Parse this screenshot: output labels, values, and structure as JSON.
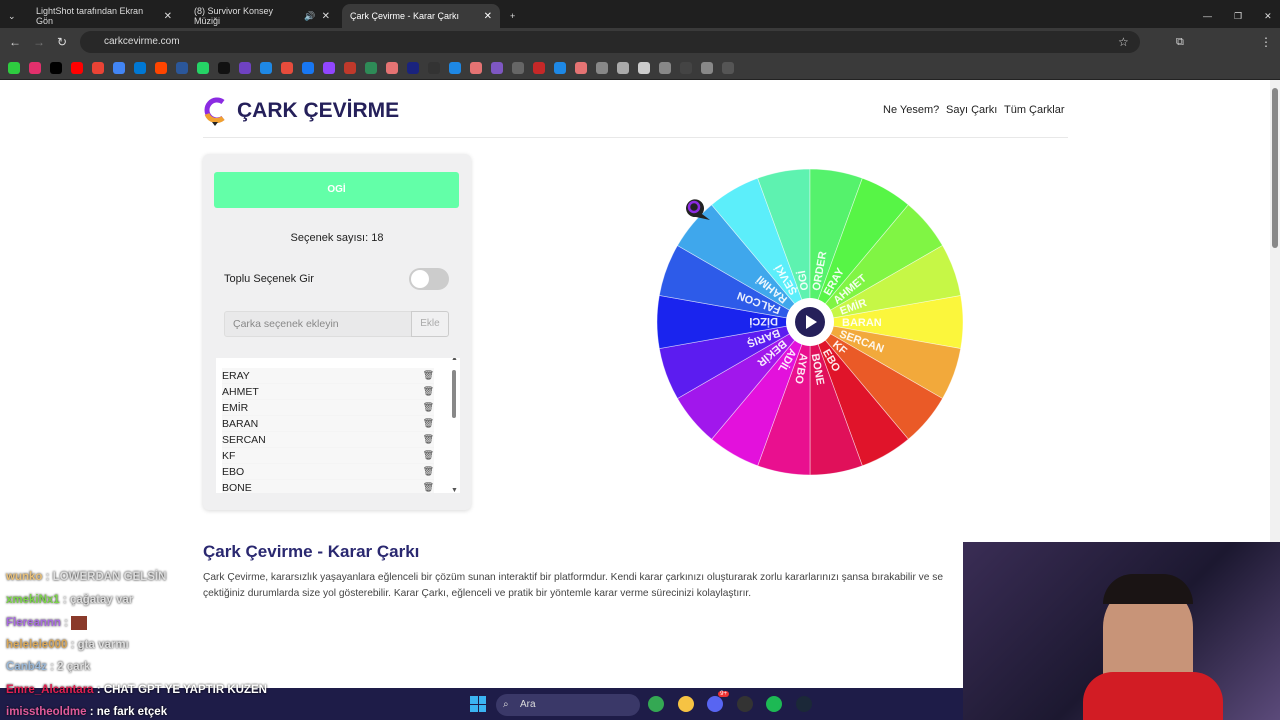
{
  "browser": {
    "tabs": [
      {
        "title": "LightShot tarafından Ekran Gön",
        "active": false
      },
      {
        "title": "(8) Survivor Konsey Müziği",
        "active": false
      },
      {
        "title": "Çark Çevirme - Karar Çarkı",
        "active": true
      }
    ],
    "url": "carkcevirme.com",
    "bookmarks": [
      "#2ecc40",
      "#e1306c",
      "#000000",
      "#ff0000",
      "#ea4335",
      "#4285f4",
      "#0078d4",
      "#ff4500",
      "#2b579a",
      "#25d366",
      "#111111",
      "#6f42c1",
      "#1e88e5",
      "#e74c3c",
      "#1877f2",
      "#9146ff",
      "#c0392b",
      "#2e8b57",
      "#e57373",
      "#1a237e",
      "#333333",
      "#1e88e5",
      "#e57373",
      "#7e57c2",
      "#666666",
      "#c62828",
      "#1e88e5",
      "#e57373",
      "#888888",
      "#aaaaaa",
      "#cccccc",
      "#888888",
      "#444444",
      "#888888",
      "#555555"
    ]
  },
  "site": {
    "logo_text": "ÇARK ÇEVİRME",
    "nav": [
      "Ne Yesem?",
      "Sayı Çarkı",
      "Tüm Çarklar"
    ]
  },
  "panel": {
    "result": "OGİ",
    "count_label": "Seçenek sayısı: 18",
    "bulk_label": "Toplu Seçenek Gir",
    "bulk_enabled": false,
    "input_placeholder": "Çarka seçenek ekleyin",
    "add_label": "Ekle",
    "items": [
      "ERAY",
      "AHMET",
      "EMİR",
      "BARAN",
      "SERCAN",
      "KF",
      "EBO",
      "BONE"
    ]
  },
  "wheel": {
    "segments": [
      {
        "label": "BARAN",
        "color": "#fbf63c"
      },
      {
        "label": "SERCAN",
        "color": "#f2a93b"
      },
      {
        "label": "KF",
        "color": "#ea5a27"
      },
      {
        "label": "EBO",
        "color": "#e0142a"
      },
      {
        "label": "BONE",
        "color": "#e0105a"
      },
      {
        "label": "AYBO",
        "color": "#e9108f"
      },
      {
        "label": "ADİL",
        "color": "#e311dc"
      },
      {
        "label": "BEKİR",
        "color": "#a117ec"
      },
      {
        "label": "BARIŞ",
        "color": "#5c1cf0"
      },
      {
        "label": "DİZCİ",
        "color": "#1a24ee"
      },
      {
        "label": "FALCON",
        "color": "#2d5be9"
      },
      {
        "label": "RAHMİ",
        "color": "#3fa7ec"
      },
      {
        "label": "ŞEVKİ",
        "color": "#5ceefa"
      },
      {
        "label": "OGİ",
        "color": "#5ef2b0"
      },
      {
        "label": "ORDER",
        "color": "#55f26c"
      },
      {
        "label": "ERAY",
        "color": "#57f546"
      },
      {
        "label": "AHMET",
        "color": "#80f544"
      },
      {
        "label": "EMİR",
        "color": "#c6f746"
      }
    ]
  },
  "article": {
    "title": "Çark Çevirme - Karar Çarkı",
    "lines": [
      "Çark Çevirme, kararsızlık yaşayanlara eğlenceli bir çözüm sunan interaktif bir platformdur. Kendi karar çarkınızı oluşturarak zorlu kararlarınızı şansa bırakabilir ve se",
      "çektiğiniz durumlarda size yol gösterebilir. Karar Çarkı, eğlenceli ve pratik bir yöntemle karar verme sürecinizi kolaylaştırır."
    ]
  },
  "chat": [
    {
      "user": "wunko",
      "msg": "LOWERDAN GELSİN",
      "color": "#e8c07a"
    },
    {
      "user": "xmekiNx1",
      "msg": "çağatay var",
      "color": "#7cd44a"
    },
    {
      "user": "Flereannn",
      "msg": "",
      "color": "#a86be0"
    },
    {
      "user": "helelele000",
      "msg": "gta varmı",
      "color": "#d9a85a"
    },
    {
      "user": "Canb4z",
      "msg": "2 çark",
      "color": "#9ab8d8"
    },
    {
      "user": "Emre_Alcantara",
      "msg": "CHAT GPT YE YAPTIR KUZEN",
      "color": "#e02050"
    },
    {
      "user": "imisstheoldme",
      "msg": "ne fark etçek",
      "color": "#e05a9a"
    }
  ],
  "taskbar": {
    "search_placeholder": "Ara",
    "apps": [
      {
        "name": "chrome",
        "color": "#34a853"
      },
      {
        "name": "file-explorer",
        "color": "#f6c343"
      },
      {
        "name": "discord",
        "color": "#5865f2",
        "badge": "9+"
      },
      {
        "name": "obs",
        "color": "#333333"
      },
      {
        "name": "spotify",
        "color": "#1db954"
      },
      {
        "name": "steam",
        "color": "#1b2838"
      }
    ]
  }
}
